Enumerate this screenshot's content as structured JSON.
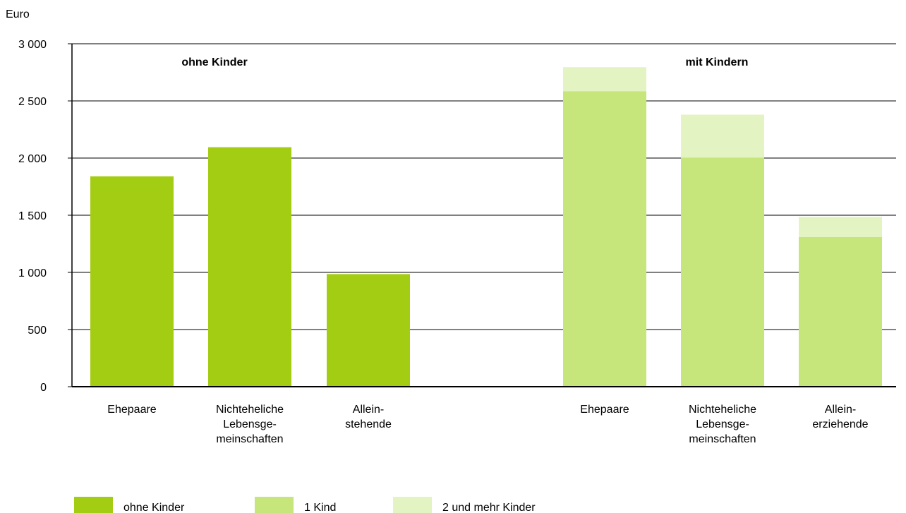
{
  "chart_data": {
    "type": "bar",
    "ylabel": "Euro",
    "ylim": [
      0,
      3000
    ],
    "yticks": [
      0,
      500,
      1000,
      1500,
      2000,
      2500,
      3000
    ],
    "ytick_labels": [
      "0",
      "500",
      "1 000",
      "1 500",
      "2 000",
      "2 500",
      "3 000"
    ],
    "grid": true,
    "groups": [
      {
        "label": "ohne Kinder",
        "categories": [
          {
            "label_lines": [
              "Ehepaare"
            ],
            "segments": [
              {
                "series": "ohne Kinder",
                "value": 1840
              }
            ]
          },
          {
            "label_lines": [
              "Nichteheliche",
              "Lebensge-",
              "meinschaften"
            ],
            "segments": [
              {
                "series": "ohne Kinder",
                "value": 2095
              }
            ]
          },
          {
            "label_lines": [
              "Allein-",
              "stehende"
            ],
            "segments": [
              {
                "series": "ohne Kinder",
                "value": 985
              }
            ]
          }
        ]
      },
      {
        "label": "mit Kindern",
        "categories": [
          {
            "label_lines": [
              "Ehepaare"
            ],
            "segments": [
              {
                "series": "1 Kind",
                "value": 2585
              },
              {
                "series": "2 und mehr Kinder",
                "value": 210
              }
            ]
          },
          {
            "label_lines": [
              "Nichteheliche",
              "Lebensge-",
              "meinschaften"
            ],
            "segments": [
              {
                "series": "1 Kind",
                "value": 2005
              },
              {
                "series": "2 und mehr Kinder",
                "value": 375
              }
            ]
          },
          {
            "label_lines": [
              "Allein-",
              "erziehende"
            ],
            "segments": [
              {
                "series": "1 Kind",
                "value": 1310
              },
              {
                "series": "2 und mehr Kinder",
                "value": 175
              }
            ]
          }
        ]
      }
    ],
    "series": [
      {
        "name": "ohne Kinder",
        "color": "#a3cd12"
      },
      {
        "name": "1 Kind",
        "color": "#c6e57b"
      },
      {
        "name": "2 und mehr Kinder",
        "color": "#e4f3c2"
      }
    ],
    "legend_position": "bottom"
  }
}
